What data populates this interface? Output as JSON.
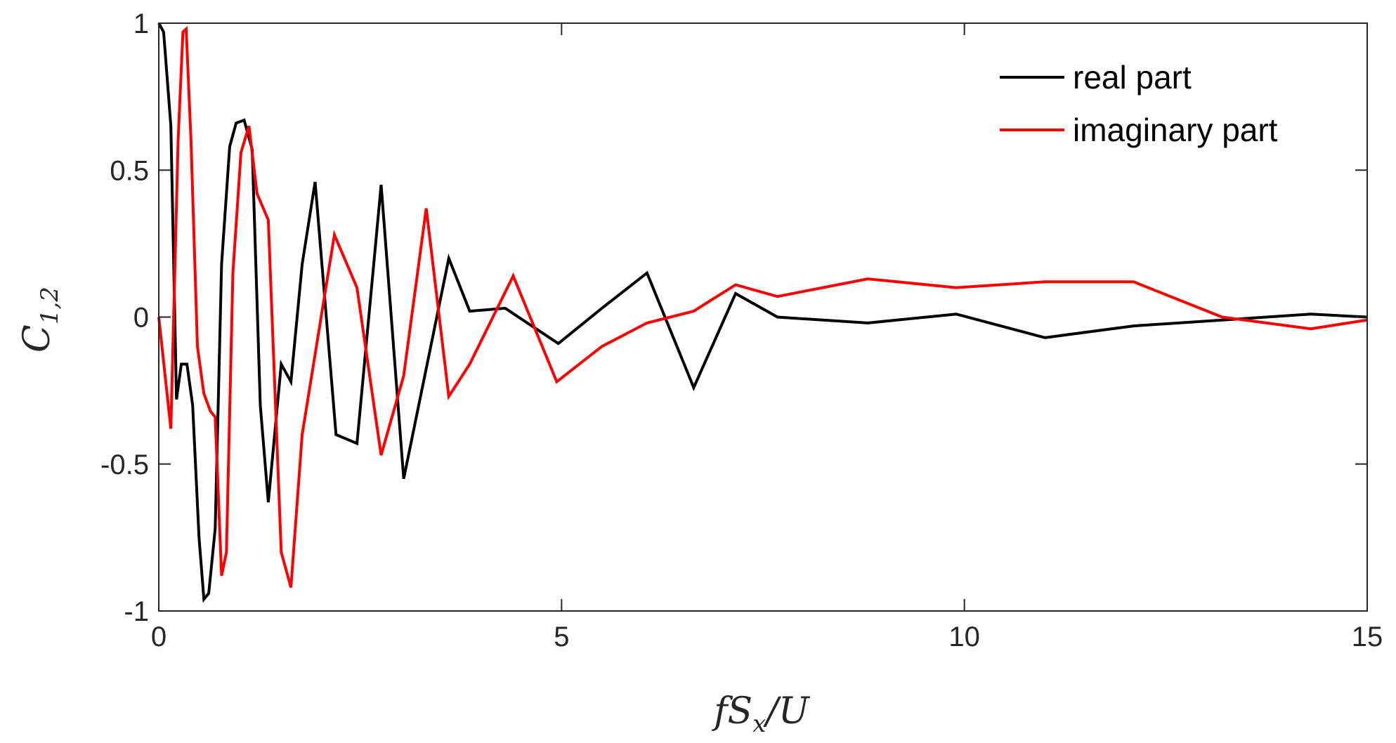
{
  "chart_data": {
    "type": "line",
    "title": "",
    "xlabel": {
      "base": "fS",
      "sub": "x",
      "tail": "/U"
    },
    "ylabel": {
      "base": "C",
      "sub": "1,2"
    },
    "xlim": [
      0,
      15
    ],
    "ylim": [
      -1,
      1
    ],
    "grid": false,
    "legend_position": "top-right",
    "xticks": [
      0,
      5,
      10,
      15
    ],
    "xtick_labels": [
      "0",
      "5",
      "10",
      "15"
    ],
    "yticks": [
      -1,
      -0.5,
      0,
      0.5,
      1
    ],
    "ytick_labels": [
      "-1",
      "-0.5",
      "0",
      "0.5",
      "1"
    ],
    "series": [
      {
        "name": "real part",
        "color": "#000000",
        "x": [
          0,
          0.06,
          0.15,
          0.22,
          0.28,
          0.35,
          0.42,
          0.5,
          0.56,
          0.62,
          0.7,
          0.78,
          0.88,
          0.96,
          1.06,
          1.16,
          1.26,
          1.36,
          1.52,
          1.64,
          1.78,
          1.94,
          2.2,
          2.46,
          2.76,
          3.04,
          3.6,
          3.86,
          4.3,
          4.96,
          5.5,
          6.06,
          6.64,
          7.16,
          7.68,
          8.8,
          9.9,
          11.0,
          12.1,
          13.2,
          14.3,
          15.0
        ],
        "y": [
          1.0,
          0.97,
          0.65,
          -0.28,
          -0.16,
          -0.16,
          -0.3,
          -0.75,
          -0.96,
          -0.94,
          -0.72,
          0.18,
          0.58,
          0.66,
          0.67,
          0.57,
          -0.3,
          -0.63,
          -0.16,
          -0.22,
          0.18,
          0.46,
          -0.4,
          -0.43,
          0.45,
          -0.55,
          0.2,
          0.02,
          0.03,
          -0.09,
          0.03,
          0.15,
          -0.24,
          0.08,
          0.0,
          -0.02,
          0.01,
          -0.07,
          -0.03,
          -0.01,
          0.01,
          0.0
        ]
      },
      {
        "name": "imaginary part",
        "color": "#ff0000",
        "x": [
          0,
          0.15,
          0.24,
          0.3,
          0.34,
          0.4,
          0.48,
          0.56,
          0.64,
          0.7,
          0.78,
          0.84,
          0.92,
          1.02,
          1.12,
          1.22,
          1.36,
          1.52,
          1.64,
          1.78,
          2.18,
          2.46,
          2.76,
          3.04,
          3.32,
          3.6,
          3.86,
          4.4,
          4.94,
          5.5,
          6.06,
          6.64,
          7.16,
          7.68,
          8.8,
          9.9,
          11.0,
          12.1,
          13.2,
          14.3,
          15.0
        ],
        "y": [
          0.0,
          -0.38,
          0.6,
          0.97,
          0.98,
          0.6,
          -0.1,
          -0.26,
          -0.32,
          -0.34,
          -0.88,
          -0.8,
          0.15,
          0.56,
          0.65,
          0.42,
          0.33,
          -0.8,
          -0.92,
          -0.4,
          0.28,
          0.1,
          -0.47,
          -0.2,
          0.37,
          -0.27,
          -0.16,
          0.14,
          -0.22,
          -0.1,
          -0.02,
          0.02,
          0.11,
          0.07,
          0.13,
          0.1,
          0.12,
          0.12,
          0.0,
          -0.04,
          -0.01
        ]
      }
    ]
  }
}
